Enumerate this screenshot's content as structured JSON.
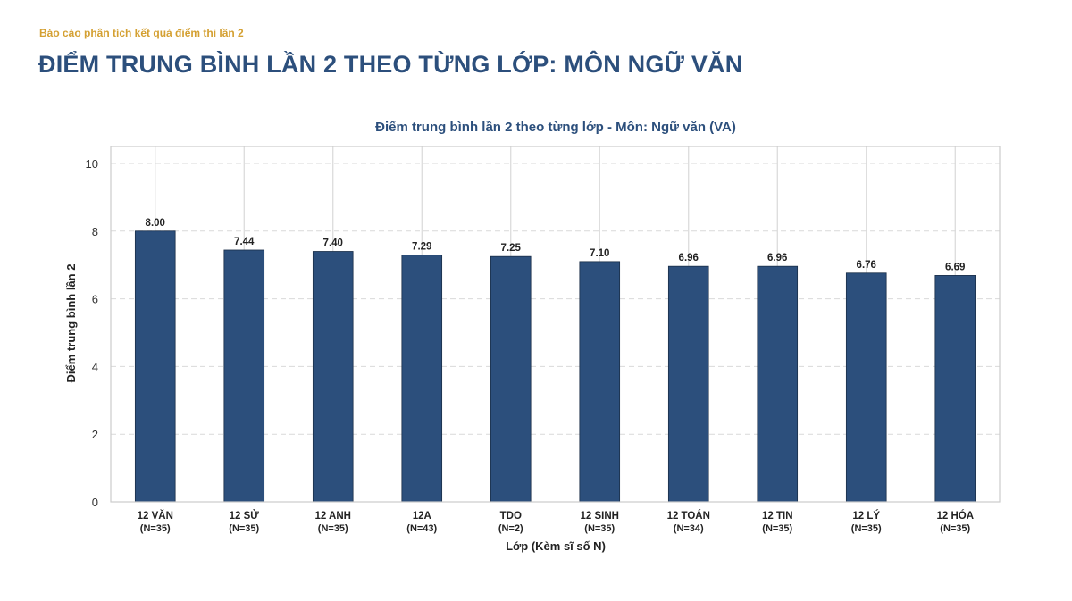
{
  "header": {
    "report_label": "Báo cáo phân tích kết quả điểm thi lần 2",
    "page_title": "ĐIỂM TRUNG BÌNH LẦN 2 THEO TỪNG LỚP: MÔN NGỮ VĂN"
  },
  "chart_data": {
    "type": "bar",
    "title": "Điểm trung bình lần 2 theo từng lớp - Môn: Ngữ văn (VA)",
    "xlabel": "Lớp (Kèm sĩ số N)",
    "ylabel": "Điểm trung bình lần 2",
    "ylim": [
      0,
      10.5
    ],
    "yticks": [
      0,
      2,
      4,
      6,
      8,
      10
    ],
    "grid": true,
    "bar_color": "#2c4f7c",
    "categories": [
      {
        "name": "12 VĂN",
        "n": "(N=35)"
      },
      {
        "name": "12 SỬ",
        "n": "(N=35)"
      },
      {
        "name": "12 ANH",
        "n": "(N=35)"
      },
      {
        "name": "12A",
        "n": "(N=43)"
      },
      {
        "name": "TDO",
        "n": "(N=2)"
      },
      {
        "name": "12 SINH",
        "n": "(N=35)"
      },
      {
        "name": "12 TOÁN",
        "n": "(N=34)"
      },
      {
        "name": "12 TIN",
        "n": "(N=35)"
      },
      {
        "name": "12 LÝ",
        "n": "(N=35)"
      },
      {
        "name": "12 HÓA",
        "n": "(N=35)"
      }
    ],
    "values": [
      8.0,
      7.44,
      7.4,
      7.29,
      7.25,
      7.1,
      6.96,
      6.96,
      6.76,
      6.69
    ],
    "value_labels": [
      "8.00",
      "7.44",
      "7.40",
      "7.29",
      "7.25",
      "7.10",
      "6.96",
      "6.96",
      "6.76",
      "6.69"
    ]
  }
}
